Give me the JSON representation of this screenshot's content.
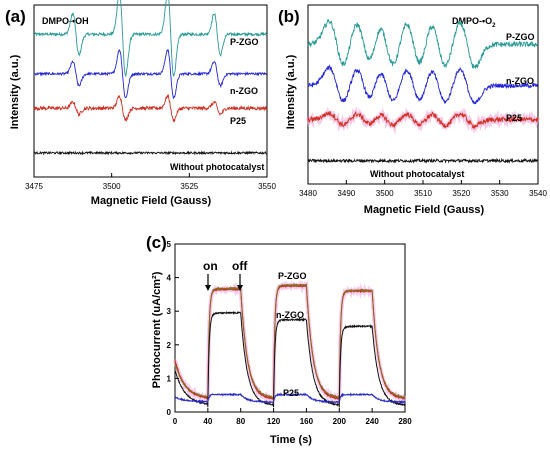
{
  "chart_data": [
    {
      "panel": "(a)",
      "type": "line",
      "annotation": "DMPO-•OH",
      "xlabel": "Magnetic Field (Gauss)",
      "ylabel": "Intensity (a.u.)",
      "xlim": [
        3475,
        3550
      ],
      "x_ticks": [
        "3475",
        "3500",
        "3525",
        "3550"
      ],
      "y_ticks_shown": false,
      "signal": {
        "kind": "quartet_1_2_2_1",
        "peak_centers": [
          3488.5,
          3503.5,
          3519.0,
          3534.0
        ],
        "relative_peak_heights": [
          1,
          2,
          2,
          1
        ]
      },
      "series": [
        {
          "name": "P-ZGO",
          "color": "#2a9a94",
          "baseline": 0.83,
          "amplitude": 0.12,
          "noise": 0.008
        },
        {
          "name": "n-ZGO",
          "color": "#2424d8",
          "baseline": 0.6,
          "amplitude": 0.07,
          "noise": 0.007
        },
        {
          "name": "P25",
          "color": "#d03022",
          "baseline": 0.4,
          "amplitude": 0.035,
          "noise": 0.01
        },
        {
          "name": "Without photocatalyst",
          "color": "#111111",
          "baseline": 0.14,
          "amplitude": 0.0,
          "noise": 0.006
        }
      ]
    },
    {
      "panel": "(b)",
      "type": "line",
      "annotation": "DMPO-•O2",
      "annotation_parts": {
        "text": "DMPO-•O",
        "subscript": "2"
      },
      "xlabel": "Magnetic Field (Gauss)",
      "ylabel": "Intensity (a.u.)",
      "xlim": [
        3480,
        3540
      ],
      "x_ticks": [
        "3480",
        "3490",
        "3500",
        "3510",
        "3520",
        "3530",
        "3540"
      ],
      "y_ticks_shown": false,
      "signal": {
        "kind": "sextet",
        "peak_centers": [
          3487.5,
          3494.5,
          3500.5,
          3507.5,
          3514.0,
          3521.5
        ]
      },
      "series": [
        {
          "name": "P-ZGO",
          "color": "#2a9a94",
          "baseline": 0.78,
          "amplitude": 0.13,
          "noise": 0.015
        },
        {
          "name": "n-ZGO",
          "color": "#2424d8",
          "baseline": 0.55,
          "amplitude": 0.1,
          "noise": 0.012
        },
        {
          "name": "P25",
          "color": "#d03022",
          "baseline": 0.36,
          "amplitude": 0.035,
          "noise": 0.014
        },
        {
          "name": "Without photocatalyst",
          "color": "#111111",
          "baseline": 0.13,
          "amplitude": 0.0,
          "noise": 0.008
        }
      ]
    },
    {
      "panel": "(c)",
      "type": "line",
      "xlabel": "Time (s)",
      "ylabel": "Photocurrent (uA/cm²)",
      "xlim": [
        0,
        280
      ],
      "ylim": [
        0,
        5
      ],
      "x_ticks": [
        "0",
        "40",
        "80",
        "120",
        "160",
        "200",
        "240",
        "280"
      ],
      "y_ticks": [
        "0",
        "1",
        "2",
        "3",
        "4",
        "5"
      ],
      "light_on_intervals": [
        [
          40,
          80
        ],
        [
          120,
          160
        ],
        [
          200,
          240
        ]
      ],
      "annotations": {
        "on": "on",
        "off": "off"
      },
      "series": [
        {
          "name": "P-ZGO",
          "color": "#c8281a",
          "halo": "#f0b8e8",
          "on_values": [
            3.65,
            3.75,
            3.6
          ],
          "off_start": 1.55,
          "off_end": 0.38
        },
        {
          "name": "",
          "color": "#8a6a1e",
          "on_values": [
            3.68,
            3.78,
            3.62
          ],
          "off_start": 1.45,
          "off_end": 0.42
        },
        {
          "name": "n-ZGO",
          "color": "#111111",
          "on_values": [
            2.95,
            2.75,
            2.55
          ],
          "off_start": 1.25,
          "off_end": 0.2
        },
        {
          "name": "P25",
          "color": "#2a2ac8",
          "on_values": [
            0.52,
            0.52,
            0.52
          ],
          "off_start": 0.45,
          "off_end": 0.3
        }
      ]
    }
  ]
}
